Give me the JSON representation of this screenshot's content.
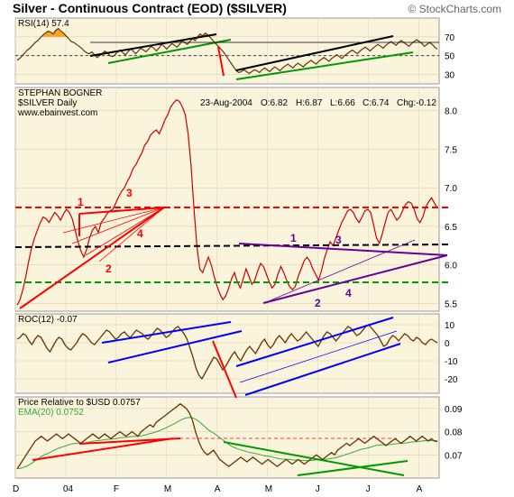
{
  "chart_data": {
    "type": "line",
    "title": "Silver - Continuous Contract (EOD) ($SILVER)",
    "watermark": "© StockCharts.com",
    "author": "STEPHAN BOGNER",
    "series_label": "$SILVER Daily",
    "website": "www.ebainvest.com",
    "quote": {
      "date": "23-Aug-2004",
      "open": "O:6.82",
      "high": "H:6.87",
      "low": "L:6.66",
      "close": "C:6.74",
      "change": "Chg:-0.12"
    },
    "x_ticks": [
      "D",
      "04",
      "F",
      "M",
      "A",
      "M",
      "J",
      "J",
      "A"
    ],
    "panels": {
      "rsi": {
        "label": "RSI(14) 57.4",
        "ylim": [
          20,
          90
        ],
        "ticks": [
          70,
          50,
          30
        ],
        "values": [
          45,
          47,
          50,
          53,
          56,
          58,
          61,
          64,
          66,
          69,
          72,
          74,
          76,
          75,
          73,
          77,
          79,
          76,
          74,
          71,
          68,
          65,
          64,
          62,
          60,
          58,
          55,
          53,
          52,
          54,
          51,
          48,
          50,
          52,
          55,
          53,
          50,
          49,
          51,
          54,
          56,
          53,
          51,
          54,
          57,
          55,
          52,
          55,
          58,
          56,
          54,
          57,
          60,
          58,
          55,
          58,
          62,
          60,
          57,
          60,
          63,
          61,
          59,
          62,
          66,
          64,
          62,
          65,
          68,
          66,
          70,
          73,
          71,
          74,
          72,
          69,
          66,
          63,
          60,
          57,
          54,
          50,
          46,
          42,
          38,
          34,
          32,
          33,
          35,
          33,
          31,
          33,
          35,
          34,
          32,
          35,
          37,
          35,
          33,
          36,
          38,
          36,
          34,
          37,
          39,
          41,
          39,
          37,
          40,
          42,
          40,
          38,
          41,
          43,
          45,
          43,
          41,
          44,
          46,
          48,
          46,
          44,
          47,
          49,
          51,
          49,
          47,
          50,
          52,
          54,
          56,
          54,
          52,
          55,
          57,
          59,
          57,
          55,
          58,
          60,
          62,
          60,
          58,
          61,
          63,
          65,
          63,
          61,
          64,
          66,
          64,
          62,
          60,
          63,
          65,
          67,
          65,
          63,
          60,
          62,
          64,
          62,
          59,
          57
        ]
      },
      "price": {
        "ylim": [
          5.4,
          8.3
        ],
        "ticks": [
          8.0,
          7.5,
          7.0,
          6.5,
          6.0,
          5.5
        ],
        "values": [
          5.48,
          5.55,
          5.68,
          5.85,
          6.05,
          6.22,
          6.35,
          6.45,
          6.55,
          6.62,
          6.6,
          6.55,
          6.62,
          6.68,
          6.64,
          6.58,
          6.66,
          6.72,
          6.68,
          6.6,
          6.45,
          6.3,
          6.18,
          6.1,
          6.2,
          6.35,
          6.45,
          6.5,
          6.42,
          6.55,
          6.6,
          6.66,
          6.7,
          6.72,
          6.8,
          6.88,
          6.95,
          7.0,
          7.08,
          7.15,
          7.25,
          7.3,
          7.38,
          7.45,
          7.55,
          7.6,
          7.68,
          7.72,
          7.75,
          7.7,
          7.78,
          7.88,
          7.95,
          8.05,
          8.1,
          8.14,
          8.12,
          8.05,
          7.95,
          7.7,
          7.3,
          6.75,
          6.25,
          5.95,
          5.9,
          6.0,
          6.1,
          6.0,
          5.85,
          5.72,
          5.62,
          5.55,
          5.6,
          5.7,
          5.82,
          5.9,
          5.78,
          5.7,
          5.82,
          5.95,
          5.85,
          5.75,
          5.8,
          5.92,
          6.02,
          5.98,
          5.88,
          5.78,
          5.7,
          5.75,
          5.88,
          5.98,
          5.9,
          5.8,
          5.72,
          5.68,
          5.72,
          5.85,
          5.95,
          6.05,
          6.1,
          6.05,
          5.95,
          5.88,
          5.8,
          5.92,
          6.08,
          6.2,
          6.3,
          6.25,
          6.35,
          6.45,
          6.55,
          6.62,
          6.7,
          6.72,
          6.68,
          6.6,
          6.55,
          6.62,
          6.7,
          6.72,
          6.68,
          6.52,
          6.35,
          6.28,
          6.4,
          6.55,
          6.68,
          6.72,
          6.65,
          6.58,
          6.62,
          6.7,
          6.78,
          6.82,
          6.8,
          6.72,
          6.6,
          6.55,
          6.62,
          6.75,
          6.82,
          6.87,
          6.8,
          6.74
        ]
      },
      "roc": {
        "label": "ROC(12) -0.07",
        "ylim": [
          -28,
          16
        ],
        "ticks": [
          10,
          0,
          -10,
          -20
        ],
        "values": [
          2,
          3,
          5,
          4,
          1,
          -1,
          2,
          4,
          3,
          0,
          -3,
          -5,
          -2,
          1,
          3,
          2,
          -1,
          -3,
          -4,
          -2,
          0,
          3,
          5,
          4,
          2,
          0,
          -1,
          1,
          3,
          5,
          7,
          6,
          4,
          2,
          3,
          5,
          6,
          4,
          3,
          5,
          7,
          6,
          5,
          3,
          2,
          4,
          6,
          8,
          7,
          5,
          3,
          4,
          6,
          8,
          9,
          7,
          5,
          2,
          -3,
          -8,
          -14,
          -18,
          -20,
          -17,
          -14,
          -11,
          -8,
          -9,
          -12,
          -15,
          -13,
          -10,
          -7,
          -5,
          -8,
          -10,
          -7,
          -4,
          -2,
          -4,
          -6,
          -3,
          0,
          2,
          -1,
          -3,
          -1,
          2,
          4,
          2,
          0,
          3,
          5,
          3,
          1,
          2,
          4,
          6,
          4,
          2,
          0,
          -2,
          1,
          4,
          6,
          5,
          3,
          1,
          3,
          5,
          7,
          9,
          8,
          6,
          4,
          5,
          7,
          9,
          10,
          8,
          6,
          4,
          1,
          -2,
          -1,
          2,
          4,
          3,
          1,
          3,
          5,
          4,
          2,
          1,
          3,
          2,
          0,
          -1,
          1,
          2,
          1,
          0
        ]
      },
      "relative": {
        "label": "Price Relative to $USD 0.0757",
        "ema_label": "EMA(20) 0.0752",
        "ylim": [
          0.06,
          0.095
        ],
        "ticks": [
          0.09,
          0.08,
          0.07
        ],
        "values": [
          0.064,
          0.066,
          0.068,
          0.07,
          0.072,
          0.074,
          0.076,
          0.077,
          0.078,
          0.077,
          0.076,
          0.077,
          0.078,
          0.079,
          0.078,
          0.077,
          0.078,
          0.079,
          0.078,
          0.077,
          0.076,
          0.075,
          0.076,
          0.077,
          0.078,
          0.079,
          0.078,
          0.077,
          0.078,
          0.079,
          0.078,
          0.077,
          0.078,
          0.079,
          0.08,
          0.079,
          0.078,
          0.079,
          0.08,
          0.079,
          0.078,
          0.08,
          0.081,
          0.082,
          0.083,
          0.082,
          0.084,
          0.085,
          0.086,
          0.087,
          0.088,
          0.089,
          0.09,
          0.091,
          0.092,
          0.091,
          0.09,
          0.088,
          0.085,
          0.08,
          0.076,
          0.073,
          0.071,
          0.07,
          0.071,
          0.072,
          0.07,
          0.068,
          0.067,
          0.066,
          0.065,
          0.066,
          0.067,
          0.068,
          0.069,
          0.068,
          0.067,
          0.068,
          0.069,
          0.068,
          0.067,
          0.066,
          0.067,
          0.068,
          0.067,
          0.066,
          0.065,
          0.066,
          0.067,
          0.068,
          0.067,
          0.066,
          0.067,
          0.068,
          0.067,
          0.066,
          0.067,
          0.068,
          0.069,
          0.07,
          0.069,
          0.068,
          0.069,
          0.07,
          0.071,
          0.07,
          0.072,
          0.073,
          0.074,
          0.075,
          0.074,
          0.075,
          0.076,
          0.077,
          0.076,
          0.075,
          0.076,
          0.077,
          0.078,
          0.077,
          0.076,
          0.075,
          0.074,
          0.075,
          0.076,
          0.077,
          0.076,
          0.075,
          0.076,
          0.077,
          0.078,
          0.077,
          0.076,
          0.077,
          0.078,
          0.077,
          0.076,
          0.077,
          0.076,
          0.0757
        ]
      }
    },
    "annotations": {
      "red_labels": [
        "1",
        "2",
        "3",
        "4"
      ],
      "purple_labels": [
        "1",
        "2",
        "3",
        "4"
      ]
    },
    "colors": {
      "panel_bg": "#fbf4dc",
      "price_line": "#cc0000",
      "series_line": "#663300",
      "red": "#ff0000",
      "green": "#009900",
      "blue": "#0000ff",
      "purple": "#660099",
      "black": "#000000",
      "rsi_fill": "#f5a623",
      "ema": "#33aa33"
    }
  }
}
